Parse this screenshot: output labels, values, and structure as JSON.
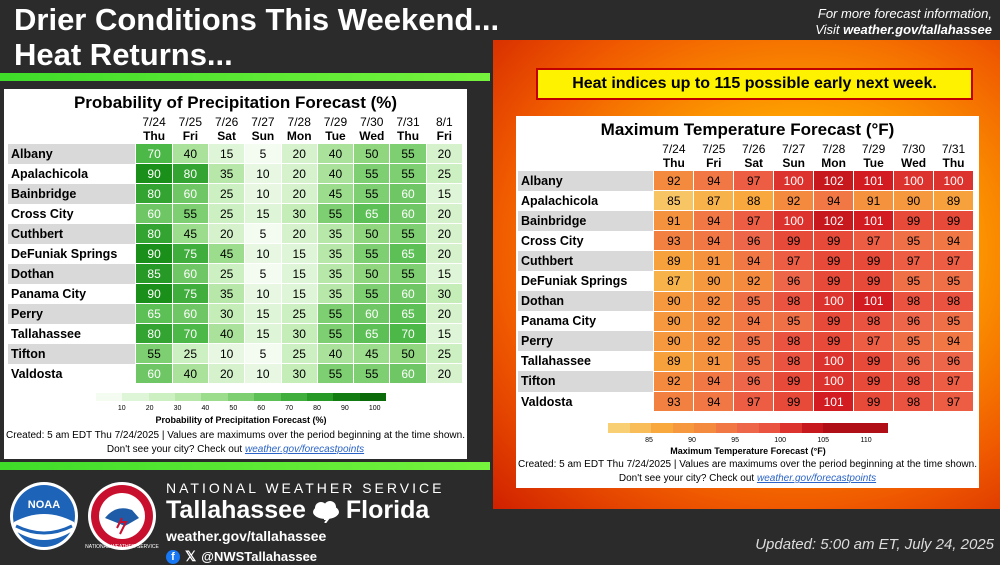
{
  "title_line1": "Drier Conditions This Weekend...",
  "title_line2": "Heat Returns...",
  "info_line1": "For more forecast information,",
  "info_prefix": "Visit ",
  "info_link": "weather.gov/tallahassee",
  "heat_banner": "Heat indices up to 115 possible early next week.",
  "pop": {
    "title": "Probability of Precipitation Forecast (%)",
    "dates": [
      "7/24",
      "7/25",
      "7/26",
      "7/27",
      "7/28",
      "7/29",
      "7/30",
      "7/31",
      "8/1"
    ],
    "days": [
      "Thu",
      "Fri",
      "Sat",
      "Sun",
      "Mon",
      "Tue",
      "Wed",
      "Thu",
      "Fri"
    ],
    "rows": [
      {
        "city": "Albany",
        "values": [
          70,
          40,
          15,
          5,
          20,
          40,
          50,
          55,
          20
        ]
      },
      {
        "city": "Apalachicola",
        "values": [
          90,
          80,
          35,
          10,
          20,
          40,
          55,
          55,
          25
        ]
      },
      {
        "city": "Bainbridge",
        "values": [
          80,
          60,
          25,
          10,
          20,
          45,
          55,
          60,
          15
        ]
      },
      {
        "city": "Cross City",
        "values": [
          60,
          55,
          25,
          15,
          30,
          55,
          65,
          60,
          20
        ]
      },
      {
        "city": "Cuthbert",
        "values": [
          80,
          45,
          20,
          5,
          20,
          35,
          50,
          55,
          20
        ]
      },
      {
        "city": "DeFuniak Springs",
        "values": [
          90,
          75,
          45,
          10,
          15,
          35,
          55,
          65,
          20
        ]
      },
      {
        "city": "Dothan",
        "values": [
          85,
          60,
          25,
          5,
          15,
          35,
          50,
          55,
          15
        ]
      },
      {
        "city": "Panama City",
        "values": [
          90,
          75,
          35,
          10,
          15,
          35,
          55,
          60,
          30
        ]
      },
      {
        "city": "Perry",
        "values": [
          65,
          60,
          30,
          15,
          25,
          55,
          60,
          65,
          20
        ]
      },
      {
        "city": "Tallahassee",
        "values": [
          80,
          70,
          40,
          15,
          30,
          55,
          65,
          70,
          15
        ]
      },
      {
        "city": "Tifton",
        "values": [
          55,
          25,
          10,
          5,
          25,
          40,
          45,
          50,
          25
        ]
      },
      {
        "city": "Valdosta",
        "values": [
          60,
          40,
          20,
          10,
          30,
          55,
          55,
          60,
          20
        ]
      }
    ],
    "colorbar_ticks": [
      "10",
      "20",
      "30",
      "40",
      "50",
      "60",
      "70",
      "80",
      "90",
      "100"
    ],
    "colorbar_title": "Probability of Precipitation Forecast (%)",
    "footer1": "Created: 5 am EDT Thu 7/24/2025  |  Values are maximums over the period beginning at the time shown.",
    "footer2_prefix": "Don't see your city? Check out ",
    "footer2_link": "weather.gov/forecastpoints"
  },
  "temp": {
    "title": "Maximum Temperature Forecast (°F)",
    "dates": [
      "7/24",
      "7/25",
      "7/26",
      "7/27",
      "7/28",
      "7/29",
      "7/30",
      "7/31"
    ],
    "days": [
      "Thu",
      "Fri",
      "Sat",
      "Sun",
      "Mon",
      "Tue",
      "Wed",
      "Thu"
    ],
    "rows": [
      {
        "city": "Albany",
        "values": [
          92,
          94,
          97,
          100,
          102,
          101,
          100,
          100
        ]
      },
      {
        "city": "Apalachicola",
        "values": [
          85,
          87,
          88,
          92,
          94,
          91,
          90,
          89
        ]
      },
      {
        "city": "Bainbridge",
        "values": [
          91,
          94,
          97,
          100,
          102,
          101,
          99,
          99
        ]
      },
      {
        "city": "Cross City",
        "values": [
          93,
          94,
          96,
          99,
          99,
          97,
          95,
          94
        ]
      },
      {
        "city": "Cuthbert",
        "values": [
          89,
          91,
          94,
          97,
          99,
          99,
          97,
          97
        ]
      },
      {
        "city": "DeFuniak Springs",
        "values": [
          87,
          90,
          92,
          96,
          99,
          99,
          95,
          95
        ]
      },
      {
        "city": "Dothan",
        "values": [
          90,
          92,
          95,
          98,
          100,
          101,
          98,
          98
        ]
      },
      {
        "city": "Panama City",
        "values": [
          90,
          92,
          94,
          95,
          99,
          98,
          96,
          95
        ]
      },
      {
        "city": "Perry",
        "values": [
          90,
          92,
          95,
          98,
          99,
          97,
          95,
          94
        ]
      },
      {
        "city": "Tallahassee",
        "values": [
          89,
          91,
          95,
          98,
          100,
          99,
          96,
          96
        ]
      },
      {
        "city": "Tifton",
        "values": [
          92,
          94,
          96,
          99,
          100,
          99,
          98,
          97
        ]
      },
      {
        "city": "Valdosta",
        "values": [
          93,
          94,
          97,
          99,
          101,
          99,
          98,
          97
        ]
      }
    ],
    "colorbar_ticks": [
      "85",
      "90",
      "95",
      "100",
      "105",
      "110"
    ],
    "colorbar_title": "Maximum Temperature Forecast (°F)",
    "footer1": "Created: 5 am EDT Thu 7/24/2025  |  Values are maximums over the period beginning at the time shown.",
    "footer2_prefix": "Don't see your city? Check out ",
    "footer2_link": "weather.gov/forecastpoints"
  },
  "logos": {
    "noaa": "NOAA",
    "nws_seal": "NATIONAL WEATHER SERVICE"
  },
  "footer": {
    "agency": "NATIONAL WEATHER SERVICE",
    "office_city": "Tallahassee",
    "office_state": "Florida",
    "website": "weather.gov/tallahassee",
    "social": "@NWSTallahassee",
    "updated": "Updated: 5:00 am ET, July 24, 2025"
  },
  "colors": {
    "pop_low": "#e7f7e1",
    "pop_high": "#0f8a0f",
    "temp_85": "#f7a83c",
    "temp_110": "#c6171d",
    "green_bar": "#3fdc2a"
  }
}
